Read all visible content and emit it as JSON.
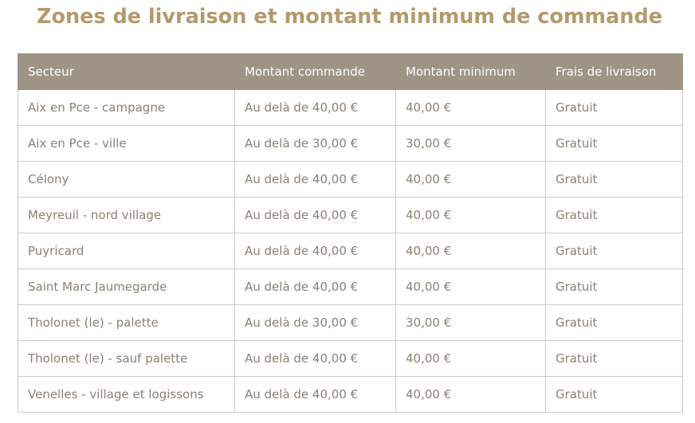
{
  "page": {
    "title": "Zones de livraison et montant minimum de commande"
  },
  "colors": {
    "title": "#b39a6c",
    "header_background": "#9e9385",
    "header_text": "#ffffff",
    "cell_text": "#8a8175",
    "cell_border": "#d0cbc4"
  },
  "table": {
    "headers": [
      "Secteur",
      "Montant commande",
      "Montant minimum",
      "Frais de livraison"
    ],
    "rows": [
      [
        "Aix en Pce - campagne",
        "Au delà de 40,00 €",
        "40,00 €",
        "Gratuit"
      ],
      [
        "Aix en Pce - ville",
        "Au delà de 30,00 €",
        "30,00 €",
        "Gratuit"
      ],
      [
        "Célony",
        "Au delà de 40,00 €",
        "40,00 €",
        "Gratuit"
      ],
      [
        "Meyreuil - nord village",
        "Au delà de 40,00 €",
        "40,00 €",
        "Gratuit"
      ],
      [
        "Puyricard",
        "Au delà de 40,00 €",
        "40,00 €",
        "Gratuit"
      ],
      [
        "Saint Marc Jaumegarde",
        "Au delà de 40,00 €",
        "40,00 €",
        "Gratuit"
      ],
      [
        "Tholonet (le) - palette",
        "Au delà de 30,00 €",
        "30,00 €",
        "Gratuit"
      ],
      [
        "Tholonet (le) - sauf palette",
        "Au delà de 40,00 €",
        "40,00 €",
        "Gratuit"
      ],
      [
        "Venelles - village et logissons",
        "Au delà de 40,00 €",
        "40,00 €",
        "Gratuit"
      ]
    ]
  }
}
